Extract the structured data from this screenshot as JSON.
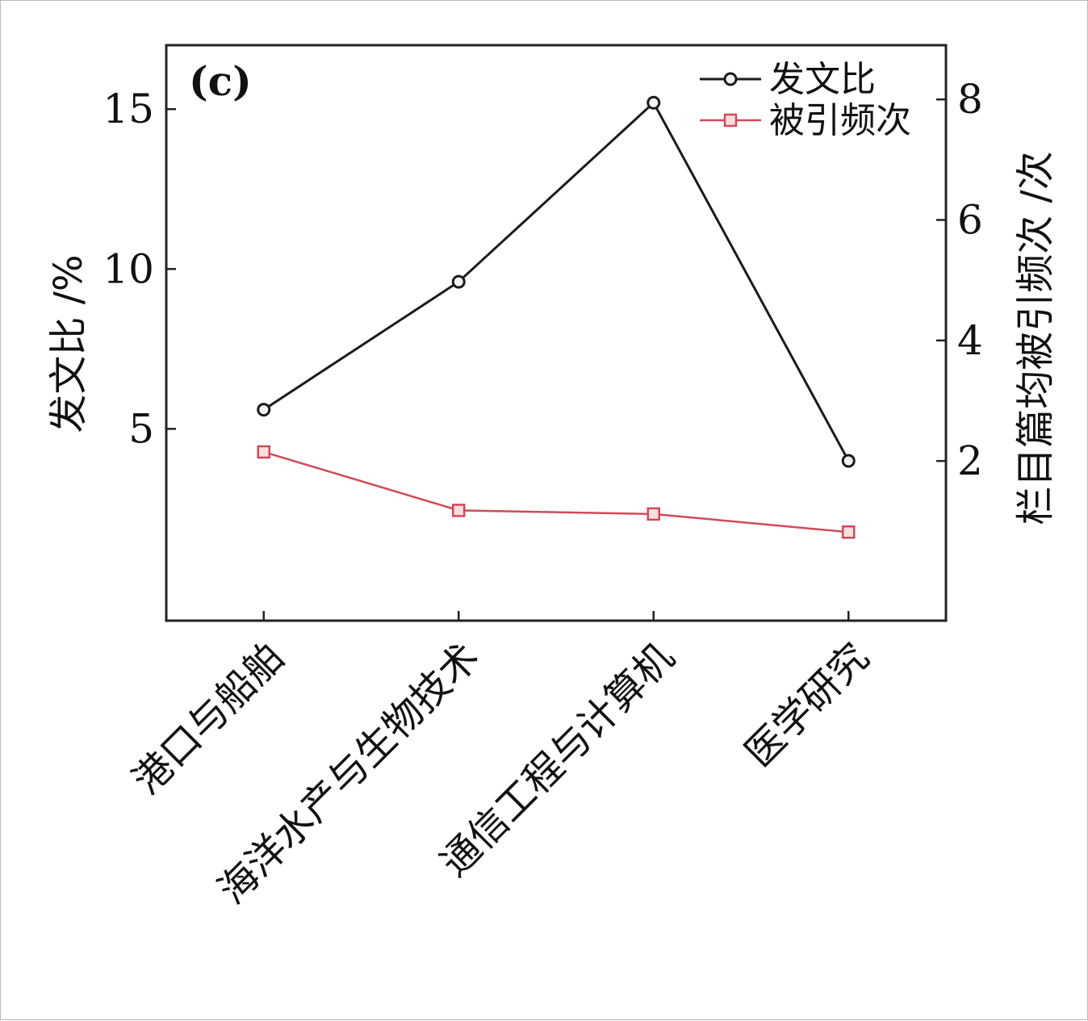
{
  "chart_data": {
    "type": "line",
    "panel_label": "(c)",
    "categories": [
      "港口与船舶",
      "海洋水产与生物技术",
      "通信工程与计算机",
      "医学研究"
    ],
    "y_left": {
      "label": "发文比 /%",
      "ticks": [
        "5",
        "10",
        "15"
      ],
      "range": [
        -1,
        17
      ]
    },
    "y_right": {
      "label": "栏目篇均被引频次 /次",
      "ticks": [
        "2",
        "4",
        "6",
        "8"
      ],
      "range": [
        -0.65,
        8.9
      ]
    },
    "series": [
      {
        "name": "发文比",
        "axis": "left",
        "color": "#1a1a1a",
        "marker": "circle",
        "values": [
          5.6,
          9.6,
          15.2,
          4.0
        ]
      },
      {
        "name": "被引频次",
        "axis": "right",
        "color": "#d04a5a",
        "marker": "square",
        "values": [
          2.15,
          1.18,
          1.12,
          0.82
        ]
      }
    ],
    "legend_position": "top-right",
    "grid": false
  }
}
